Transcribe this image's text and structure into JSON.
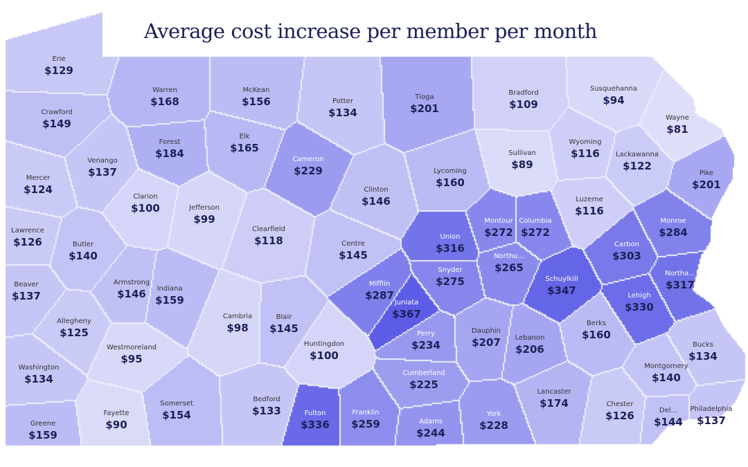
{
  "title": "Average cost increase per member per month",
  "colors": {
    "low": "#dedefa",
    "high": "#5c5ce6",
    "value_text": "#1b2156",
    "title": "#1b2058",
    "border": "#eeeeff"
  },
  "legend": null,
  "counties": [
    {
      "name": "Erie",
      "value": "$129"
    },
    {
      "name": "Crawford",
      "value": "$149"
    },
    {
      "name": "Mercer",
      "value": "$124"
    },
    {
      "name": "Lawrence",
      "value": "$126"
    },
    {
      "name": "Beaver",
      "value": "$137"
    },
    {
      "name": "Washington",
      "value": "$134"
    },
    {
      "name": "Greene",
      "value": "$159"
    },
    {
      "name": "Allegheny",
      "value": "$125"
    },
    {
      "name": "Butler",
      "value": "$140"
    },
    {
      "name": "Venango",
      "value": "$137"
    },
    {
      "name": "Clarion",
      "value": "$100"
    },
    {
      "name": "Armstrong",
      "value": "$146"
    },
    {
      "name": "Indiana",
      "value": "$159"
    },
    {
      "name": "Westmoreland",
      "value": "$95"
    },
    {
      "name": "Fayette",
      "value": "$90"
    },
    {
      "name": "Somerset",
      "value": "$154"
    },
    {
      "name": "Cambria",
      "value": "$98"
    },
    {
      "name": "Jefferson",
      "value": "$99"
    },
    {
      "name": "Clearfield",
      "value": "$118"
    },
    {
      "name": "Elk",
      "value": "$165"
    },
    {
      "name": "Forest",
      "value": "$184"
    },
    {
      "name": "Warren",
      "value": "$168"
    },
    {
      "name": "McKean",
      "value": "$156"
    },
    {
      "name": "Cameron",
      "value": "$229"
    },
    {
      "name": "Potter",
      "value": "$134"
    },
    {
      "name": "Clinton",
      "value": "$146"
    },
    {
      "name": "Centre",
      "value": "$145"
    },
    {
      "name": "Blair",
      "value": "$145"
    },
    {
      "name": "Huntingdon",
      "value": "$100"
    },
    {
      "name": "Bedford",
      "value": "$133"
    },
    {
      "name": "Fulton",
      "value": "$336"
    },
    {
      "name": "Franklin",
      "value": "$259"
    },
    {
      "name": "Adams",
      "value": "$244"
    },
    {
      "name": "York",
      "value": "$228"
    },
    {
      "name": "Cumberland",
      "value": "$225"
    },
    {
      "name": "Perry",
      "value": "$234"
    },
    {
      "name": "Juniata",
      "value": "$367"
    },
    {
      "name": "Mifflin",
      "value": "$287"
    },
    {
      "name": "Snyder",
      "value": "$275"
    },
    {
      "name": "Union",
      "value": "$316"
    },
    {
      "name": "Northu...",
      "value": "$265"
    },
    {
      "name": "Montour",
      "value": "$272"
    },
    {
      "name": "Columbia",
      "value": "$272"
    },
    {
      "name": "Lycoming",
      "value": "$160"
    },
    {
      "name": "Tioga",
      "value": "$201"
    },
    {
      "name": "Bradford",
      "value": "$109"
    },
    {
      "name": "Sullivan",
      "value": "$89"
    },
    {
      "name": "Wyoming",
      "value": "$116"
    },
    {
      "name": "Susquehanna",
      "value": "$94"
    },
    {
      "name": "Wayne",
      "value": "$81"
    },
    {
      "name": "Lackawanna",
      "value": "$122"
    },
    {
      "name": "Luzerne",
      "value": "$116"
    },
    {
      "name": "Pike",
      "value": "$201"
    },
    {
      "name": "Monroe",
      "value": "$284"
    },
    {
      "name": "Carbon",
      "value": "$303"
    },
    {
      "name": "Schuylkill",
      "value": "$347"
    },
    {
      "name": "Northa...",
      "value": "$317"
    },
    {
      "name": "Lehigh",
      "value": "$330"
    },
    {
      "name": "Dauphin",
      "value": "$207"
    },
    {
      "name": "Lebanon",
      "value": "$206"
    },
    {
      "name": "Berks",
      "value": "$160"
    },
    {
      "name": "Lancaster",
      "value": "$174"
    },
    {
      "name": "Chester",
      "value": "$126"
    },
    {
      "name": "Bucks",
      "value": "$134"
    },
    {
      "name": "Montgomery",
      "value": "$140"
    },
    {
      "name": "Del...",
      "value": "$144"
    },
    {
      "name": "Philadelphia",
      "value": "$137"
    }
  ]
}
